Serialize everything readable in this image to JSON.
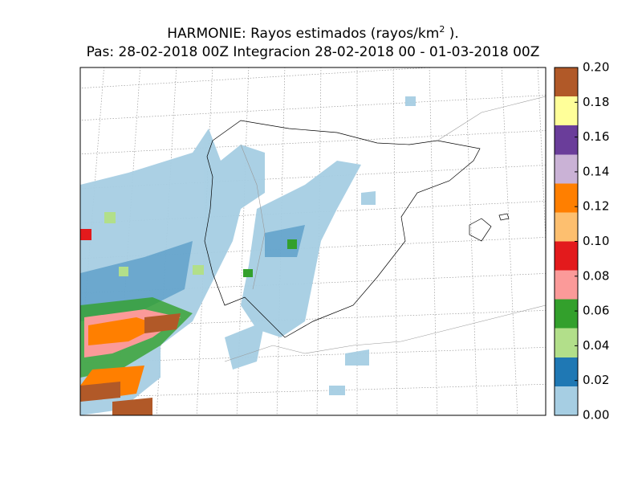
{
  "header": {
    "title": {
      "text_before": "HARMONIE: Rayos estimados  (rayos/km",
      "superscript": "2",
      "text_after": " )."
    },
    "subtitle": "Pas: 28-02-2018 00Z Integracion 28-02-2018 00 - 01-03-2018 00Z"
  },
  "colorbar": {
    "lim": [
      0,
      0.2
    ],
    "ticks": [
      {
        "value": 0,
        "label": "0.00"
      },
      {
        "value": 0.02,
        "label": "0.02"
      },
      {
        "value": 0.04,
        "label": "0.04"
      },
      {
        "value": 0.06,
        "label": "0.06"
      },
      {
        "value": 0.08,
        "label": "0.08"
      },
      {
        "value": 0.1,
        "label": "0.10"
      },
      {
        "value": 0.12,
        "label": "0.12"
      },
      {
        "value": 0.14,
        "label": "0.14"
      },
      {
        "value": 0.16,
        "label": "0.16"
      },
      {
        "value": 0.18,
        "label": "0.18"
      },
      {
        "value": 0.2,
        "label": "0.20"
      }
    ],
    "colors": [
      "#a6cee3",
      "#1f78b4",
      "#b2df8a",
      "#33a02c",
      "#fb9a99",
      "#e31a1c",
      "#fdbf6f",
      "#ff7f00",
      "#cab2d6",
      "#6a3d9a",
      "#ffff99",
      "#b15928"
    ]
  }
}
